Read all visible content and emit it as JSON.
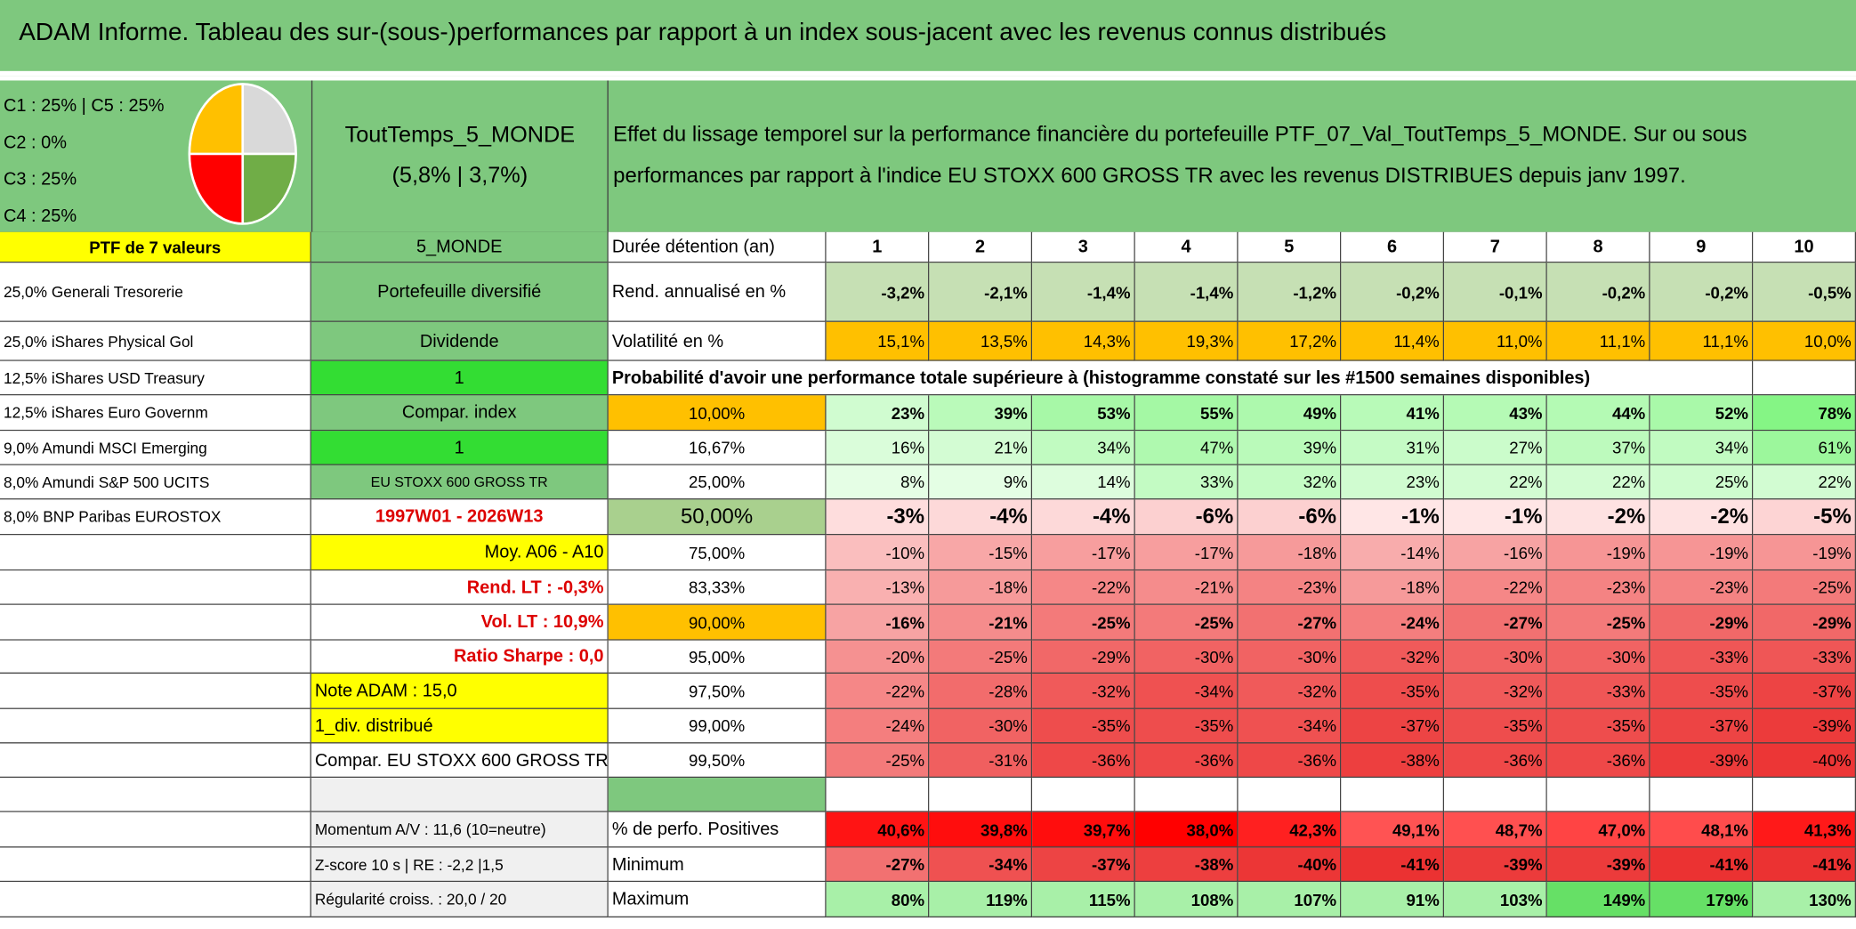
{
  "title": "ADAM Informe. Tableau des sur-(sous-)performances par rapport à un index sous-jacent avec les revenus connus distribués",
  "pie_legend": [
    "C1 : 25% | C5 : 25%",
    "C2 : 0%",
    "C3 : 25%",
    "C4 : 25%"
  ],
  "portfolio_name": "ToutTemps_5_MONDE",
  "portfolio_stats": "(5,8% | 3,7%)",
  "description": "Effet du lissage temporel sur la performance financière du portefeuille PTF_07_Val_ToutTemps_5_MONDE. Sur ou sous performances par rapport à l'indice EU STOXX 600 GROSS TR avec les revenus DISTRIBUES depuis janv 1997.",
  "rows": [
    {
      "a": "PTF de 7 valeurs",
      "b": "5_MONDE",
      "c": "Durée détention (an)",
      "values": [
        1,
        2,
        3,
        4,
        5,
        6,
        7,
        8,
        9,
        10
      ]
    },
    {
      "a": "25,0% Generali Tresorerie",
      "b": "Portefeuille diversifié",
      "c": "Rend. annualisé en %",
      "values": [
        "-3,2%",
        "-2,1%",
        "-1,4%",
        "-1,4%",
        "-1,2%",
        "-0,2%",
        "-0,1%",
        "-0,2%",
        "-0,2%",
        "-0,5%"
      ]
    },
    {
      "a": "25,0% iShares Physical Gol",
      "b": "Dividende",
      "c": "Volatilité en %",
      "values": [
        "15,1%",
        "13,5%",
        "14,3%",
        "19,3%",
        "17,2%",
        "11,4%",
        "11,0%",
        "11,1%",
        "11,1%",
        "10,0%"
      ]
    },
    {
      "a": "12,5% iShares USD Treasury",
      "b": "1",
      "c": "Probabilité d'avoir une performance totale supérieure à (histogramme constaté sur les #1500 semaines disponibles)"
    },
    {
      "a": "12,5% iShares Euro Governm",
      "b": "Compar. index",
      "c": "10,00%",
      "values": [
        "23%",
        "39%",
        "53%",
        "55%",
        "49%",
        "41%",
        "43%",
        "44%",
        "52%",
        "78%"
      ]
    },
    {
      "a": "9,0% Amundi MSCI Emerging",
      "b": "1",
      "c": "16,67%",
      "values": [
        "16%",
        "21%",
        "34%",
        "47%",
        "39%",
        "31%",
        "27%",
        "37%",
        "34%",
        "61%"
      ]
    },
    {
      "a": "8,0% Amundi S&P 500 UCITS",
      "b": "EU STOXX 600 GROSS TR",
      "c": "25,00%",
      "values": [
        "8%",
        "9%",
        "14%",
        "33%",
        "32%",
        "23%",
        "22%",
        "22%",
        "25%",
        "22%"
      ]
    },
    {
      "a": "8,0% BNP Paribas EUROSTOX",
      "b": "1997W01 - 2026W13",
      "c": "50,00%",
      "values": [
        "-3%",
        "-4%",
        "-4%",
        "-6%",
        "-6%",
        "-1%",
        "-1%",
        "-2%",
        "-2%",
        "-5%"
      ]
    },
    {
      "b": "Moy. A06 - A10",
      "c": "75,00%",
      "values": [
        "-10%",
        "-15%",
        "-17%",
        "-17%",
        "-18%",
        "-14%",
        "-16%",
        "-19%",
        "-19%",
        "-19%"
      ]
    },
    {
      "b": "Rend. LT : -0,3%",
      "c": "83,33%",
      "values": [
        "-13%",
        "-18%",
        "-22%",
        "-21%",
        "-23%",
        "-18%",
        "-22%",
        "-23%",
        "-23%",
        "-25%"
      ]
    },
    {
      "b": "Vol. LT : 10,9%",
      "c": "90,00%",
      "values": [
        "-16%",
        "-21%",
        "-25%",
        "-25%",
        "-27%",
        "-24%",
        "-27%",
        "-25%",
        "-29%",
        "-29%"
      ]
    },
    {
      "b": "Ratio Sharpe : 0,0",
      "c": "95,00%",
      "values": [
        "-20%",
        "-25%",
        "-29%",
        "-30%",
        "-30%",
        "-32%",
        "-30%",
        "-30%",
        "-33%",
        "-33%"
      ]
    },
    {
      "b": "Note ADAM : 15,0",
      "c": "97,50%",
      "values": [
        "-22%",
        "-28%",
        "-32%",
        "-34%",
        "-32%",
        "-35%",
        "-32%",
        "-33%",
        "-35%",
        "-37%"
      ]
    },
    {
      "b": "1_div. distribué",
      "c": "99,00%",
      "values": [
        "-24%",
        "-30%",
        "-35%",
        "-35%",
        "-34%",
        "-37%",
        "-35%",
        "-35%",
        "-37%",
        "-39%"
      ]
    },
    {
      "b": "Compar. EU STOXX 600 GROSS TR",
      "c": "99,50%",
      "values": [
        "-25%",
        "-31%",
        "-36%",
        "-36%",
        "-36%",
        "-38%",
        "-36%",
        "-36%",
        "-39%",
        "-40%"
      ]
    },
    {},
    {
      "b": "Momentum A/V : 11,6 (10=neutre)",
      "c": "% de perfo. Positives",
      "values": [
        "40,6%",
        "39,8%",
        "39,7%",
        "38,0%",
        "42,3%",
        "49,1%",
        "48,7%",
        "47,0%",
        "48,1%",
        "41,3%"
      ]
    },
    {
      "b": "Z-score 10 s | RE : -2,2 |1,5",
      "c": "Minimum",
      "values": [
        "-27%",
        "-34%",
        "-37%",
        "-38%",
        "-40%",
        "-41%",
        "-39%",
        "-39%",
        "-41%",
        "-41%"
      ]
    },
    {
      "b": "Régularité croiss. : 20,0 / 20",
      "c": "Maximum",
      "values": [
        "80%",
        "119%",
        "115%",
        "108%",
        "107%",
        "91%",
        "103%",
        "149%",
        "179%",
        "130%"
      ]
    }
  ]
}
